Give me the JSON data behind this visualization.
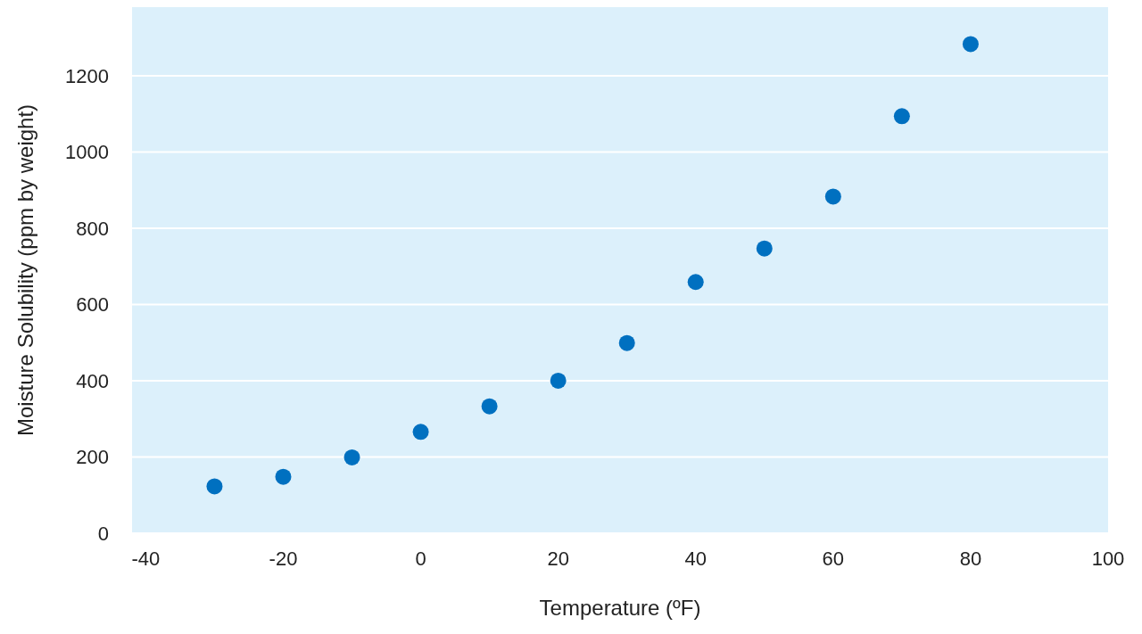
{
  "chart_data": {
    "type": "scatter",
    "xlabel": "Temperature (ºF)",
    "ylabel": "Moisture Solubility (ppm by weight)",
    "x": [
      -30,
      -20,
      -10,
      0,
      10,
      20,
      30,
      40,
      50,
      60,
      70,
      80
    ],
    "series": [
      {
        "color": "#0070c0",
        "values": [
          123,
          148,
          199,
          266,
          333,
          400,
          499,
          659,
          747,
          883,
          1094,
          1283
        ]
      }
    ],
    "xlim": [
      -42,
      100
    ],
    "xticks": [
      -40,
      -20,
      0,
      20,
      40,
      60,
      80,
      100
    ],
    "ylim": [
      0,
      1380
    ],
    "yticks": [
      0,
      200,
      400,
      600,
      800,
      1000,
      1200
    ],
    "grid": "y",
    "marker": "circle"
  }
}
